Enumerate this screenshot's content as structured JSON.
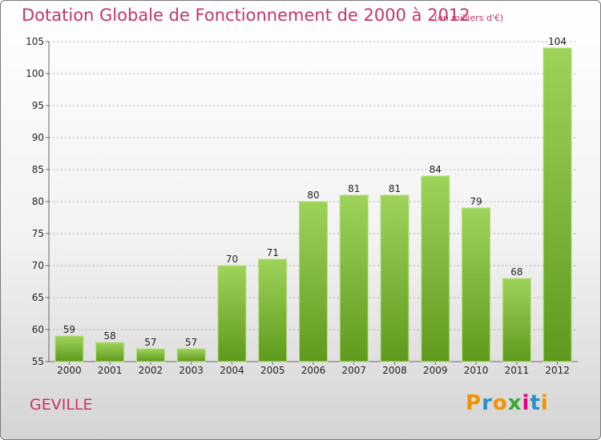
{
  "header": {
    "title": "Dotation Globale de Fonctionnement de 2000 à 2012",
    "subtitle": "(en milliers d'€)"
  },
  "footer": {
    "commune": "GEVILLE",
    "logo_text": "ProXiti",
    "logo_letters": [
      "P",
      "r",
      "o",
      "x",
      "i",
      "t",
      "i"
    ],
    "logo_colors": [
      "#f39200",
      "#2a8ec8",
      "#f39200",
      "#3aa935",
      "#e5007e",
      "#2a8ec8",
      "#f39200"
    ]
  },
  "colors": {
    "bar_light": "#9ed35a",
    "bar_dark": "#5f9a1c",
    "title": "#c8336a",
    "grid": "#b0b0b0"
  },
  "chart_data": {
    "type": "bar",
    "title": "Dotation Globale de Fonctionnement de 2000 à 2012",
    "subtitle": "(en milliers d'€)",
    "xlabel": "",
    "ylabel": "",
    "categories": [
      "2000",
      "2001",
      "2002",
      "2003",
      "2004",
      "2005",
      "2006",
      "2007",
      "2008",
      "2009",
      "2010",
      "2011",
      "2012"
    ],
    "values": [
      59,
      58,
      57,
      57,
      70,
      71,
      80,
      81,
      81,
      84,
      79,
      68,
      104
    ],
    "ylim": [
      55,
      105
    ],
    "yticks": [
      55,
      60,
      65,
      70,
      75,
      80,
      85,
      90,
      95,
      100,
      105
    ],
    "grid": true,
    "data_labels": true
  }
}
